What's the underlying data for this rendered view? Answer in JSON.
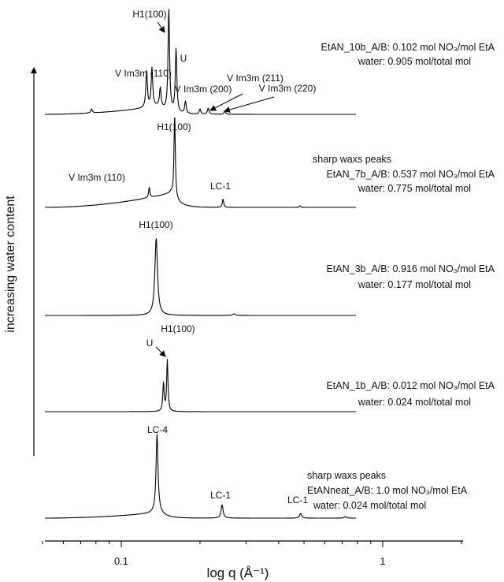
{
  "chart_data": {
    "type": "line",
    "title": "",
    "xlabel": "log q (Å⁻¹)",
    "ylabel": "increasing water content",
    "xscale": "log",
    "xlim": [
      0.05,
      2.0
    ],
    "x_tick_labels": [
      "0.1",
      "1"
    ],
    "grid": false,
    "legend": "none",
    "series": [
      {
        "description_lines": [
          "EtAN_10b_A/B: 0.102 mol NO₃/mol EtA",
          "water: 0.905 mol/total mol"
        ],
        "peaks": [
          {
            "q": 0.077,
            "h": 0.04
          },
          {
            "q": 0.125,
            "h": 0.36
          },
          {
            "q": 0.131,
            "h": 0.38
          },
          {
            "q": 0.141,
            "h": 0.18
          },
          {
            "q": 0.152,
            "h": 1.0
          },
          {
            "q": 0.162,
            "h": 0.62
          },
          {
            "q": 0.176,
            "h": 0.12
          },
          {
            "q": 0.2,
            "h": 0.05
          },
          {
            "q": 0.215,
            "h": 0.06
          },
          {
            "q": 0.249,
            "h": 0.03
          }
        ],
        "annotations": [
          {
            "text": "H1(100)",
            "q": 0.152
          },
          {
            "text": "U",
            "q": 0.162
          },
          {
            "text": "V Im3m (110)",
            "q": 0.125
          },
          {
            "text": "V Im3m (200)",
            "q": 0.176
          },
          {
            "text": "V Im3m (211)",
            "q": 0.215
          },
          {
            "text": "V Im3m (220)",
            "q": 0.249
          }
        ]
      },
      {
        "description_lines": [
          "sharp waxs peaks",
          "EtAN_7b_A/B: 0.537 mol NO₃/mol EtA",
          "water: 0.775 mol/total mol"
        ],
        "peaks": [
          {
            "q": 0.128,
            "h": 0.12
          },
          {
            "q": 0.16,
            "h": 1.0
          },
          {
            "q": 0.245,
            "h": 0.1
          },
          {
            "q": 0.482,
            "h": 0.02
          }
        ],
        "annotations": [
          {
            "text": "V Im3m (110)",
            "q": 0.128
          },
          {
            "text": "H1(100)",
            "q": 0.16
          },
          {
            "text": "LC-1",
            "q": 0.245
          }
        ]
      },
      {
        "description_lines": [
          "EtAN_3b_A/B: 0.916 mol NO₃/mol EtA",
          "water: 0.177 mol/total mol"
        ],
        "peaks": [
          {
            "q": 0.136,
            "h": 1.0
          },
          {
            "q": 0.27,
            "h": 0.02
          }
        ],
        "annotations": [
          {
            "text": "H1(100)",
            "q": 0.136
          }
        ]
      },
      {
        "description_lines": [
          "EtAN_1b_A/B: 0.012 mol NO₃/mol EtA",
          "water: 0.024 mol/total mol"
        ],
        "peaks": [
          {
            "q": 0.145,
            "h": 0.55
          },
          {
            "q": 0.15,
            "h": 1.0
          }
        ],
        "annotations": [
          {
            "text": "U",
            "q": 0.145
          },
          {
            "text": "H1(100)",
            "q": 0.15
          }
        ]
      },
      {
        "description_lines": [
          "sharp waxs peaks",
          "EtANneat_A/B: 1.0 mol NO₃/mol EtA",
          "water: 0.024 mol/total mol"
        ],
        "peaks": [
          {
            "q": 0.137,
            "h": 1.0
          },
          {
            "q": 0.243,
            "h": 0.17
          },
          {
            "q": 0.485,
            "h": 0.06
          },
          {
            "q": 0.72,
            "h": 0.02
          }
        ],
        "annotations": [
          {
            "text": "LC-4",
            "q": 0.137
          },
          {
            "text": "LC-1",
            "q": 0.243
          },
          {
            "text": "LC-1",
            "q": 0.485
          }
        ]
      }
    ]
  }
}
